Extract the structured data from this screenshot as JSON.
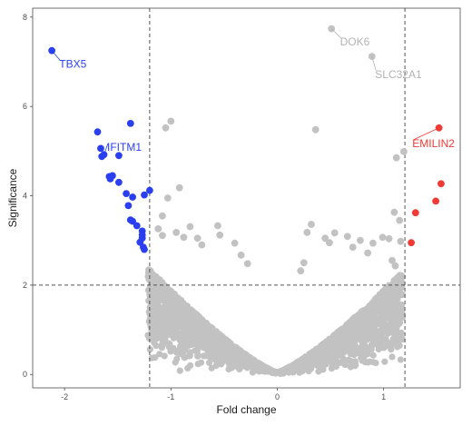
{
  "chart_data": {
    "type": "scatter",
    "title": "",
    "xlabel": "Fold change",
    "ylabel": "Significance",
    "xlim": [
      -2.3,
      1.72
    ],
    "ylim": [
      -0.3,
      8.2
    ],
    "xticks": [
      -2,
      -1,
      0,
      1
    ],
    "yticks": [
      0,
      2,
      4,
      6,
      8
    ],
    "grid": false,
    "legend": "none",
    "thresholds": {
      "fold_change": [
        -1.2,
        1.2
      ],
      "significance": 2
    },
    "colors": {
      "down": "#2a3ff0",
      "up": "#f03a35",
      "ns": "#c2c2c2",
      "ns_label": "#b3b3b3",
      "threshold": "#555555"
    },
    "series": [
      {
        "color": "#2a3ff0",
        "points": [
          [
            -2.12,
            7.25
          ],
          [
            -1.69,
            5.43
          ],
          [
            -1.66,
            5.06
          ],
          [
            -1.63,
            4.92
          ],
          [
            -1.65,
            4.88
          ],
          [
            -1.38,
            5.62
          ],
          [
            -1.49,
            4.9
          ],
          [
            -1.58,
            4.43
          ],
          [
            -1.55,
            4.45
          ],
          [
            -1.57,
            4.38
          ],
          [
            -1.49,
            4.3
          ],
          [
            -1.42,
            4.05
          ],
          [
            -1.36,
            3.97
          ],
          [
            -1.25,
            4.02
          ],
          [
            -1.2,
            4.12
          ],
          [
            -1.4,
            3.78
          ],
          [
            -1.36,
            3.43
          ],
          [
            -1.38,
            3.46
          ],
          [
            -1.32,
            3.33
          ],
          [
            -1.27,
            3.21
          ],
          [
            -1.27,
            3.12
          ],
          [
            -1.27,
            3.05
          ],
          [
            -1.29,
            2.96
          ],
          [
            -1.26,
            2.85
          ],
          [
            -1.25,
            2.8
          ]
        ]
      },
      {
        "color": "#f03a35",
        "points": [
          [
            1.52,
            5.52
          ],
          [
            1.54,
            4.27
          ],
          [
            1.49,
            3.88
          ],
          [
            1.3,
            3.62
          ],
          [
            1.26,
            2.95
          ]
        ]
      },
      {
        "color": "#c2c2c2",
        "points": [
          [
            -1.0,
            5.67
          ],
          [
            -1.05,
            5.52
          ],
          [
            0.36,
            5.48
          ],
          [
            0.51,
            7.74
          ],
          [
            0.89,
            7.12
          ],
          [
            1.12,
            4.85
          ],
          [
            1.19,
            4.99
          ],
          [
            -0.92,
            4.18
          ],
          [
            -1.03,
            3.95
          ],
          [
            -1.08,
            3.55
          ],
          [
            -1.12,
            3.26
          ],
          [
            -1.08,
            3.11
          ],
          [
            -0.95,
            3.18
          ],
          [
            -0.88,
            3.07
          ],
          [
            -0.82,
            3.31
          ],
          [
            -0.75,
            3.05
          ],
          [
            -0.71,
            2.9
          ],
          [
            -0.56,
            3.33
          ],
          [
            -0.54,
            3.12
          ],
          [
            -0.4,
            2.94
          ],
          [
            -0.34,
            2.67
          ],
          [
            -0.28,
            2.48
          ],
          [
            0.32,
            3.36
          ],
          [
            0.28,
            3.18
          ],
          [
            0.45,
            3.05
          ],
          [
            0.54,
            3.17
          ],
          [
            0.49,
            2.95
          ],
          [
            0.66,
            3.09
          ],
          [
            0.71,
            2.85
          ],
          [
            0.78,
            3.0
          ],
          [
            0.85,
            2.72
          ],
          [
            0.9,
            2.94
          ],
          [
            0.99,
            3.07
          ],
          [
            1.05,
            3.04
          ],
          [
            1.1,
            3.63
          ],
          [
            1.15,
            3.45
          ],
          [
            1.16,
            2.98
          ],
          [
            1.08,
            2.55
          ],
          [
            1.11,
            2.43
          ],
          [
            0.25,
            2.5
          ],
          [
            0.22,
            2.32
          ]
        ]
      }
    ],
    "labels": [
      {
        "text": "TBX5",
        "x": -2.12,
        "y": 7.25,
        "lx": -2.05,
        "ly": 6.95,
        "color": "#2a3ff0"
      },
      {
        "text": "IFITM1",
        "x": -1.63,
        "y": 4.92,
        "lx": -1.6,
        "ly": 5.09,
        "color": "#2a3ff0"
      },
      {
        "text": "DOK6",
        "x": 0.51,
        "y": 7.74,
        "lx": 0.59,
        "ly": 7.45,
        "color": "#b3b3b3"
      },
      {
        "text": "SLC32A1",
        "x": 0.89,
        "y": 7.12,
        "lx": 0.92,
        "ly": 6.72,
        "color": "#b3b3b3"
      },
      {
        "text": "EMILIN2",
        "x": 1.52,
        "y": 5.52,
        "lx": 1.27,
        "ly": 5.17,
        "color": "#f03a35"
      }
    ],
    "background_cloud": "dense grey scatter forming a V shape centred at fold change 0, significance 0"
  }
}
